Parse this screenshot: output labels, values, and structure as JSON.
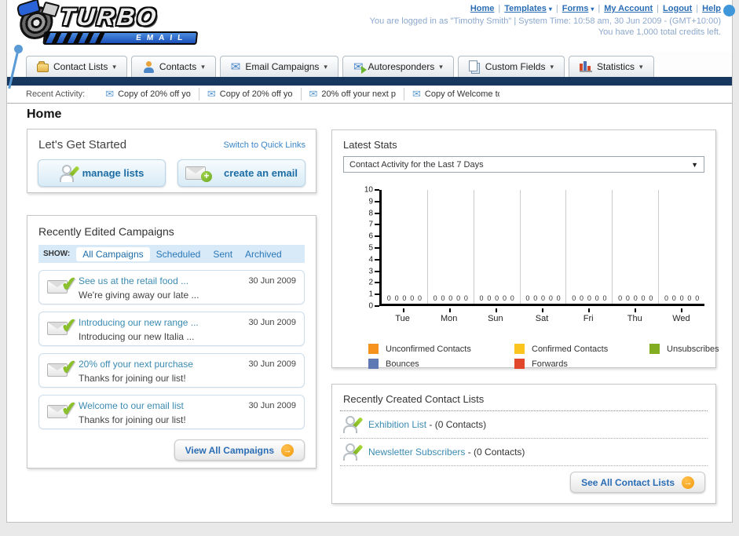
{
  "header": {
    "separator": "|",
    "nav_links": [
      {
        "label": "Home",
        "dropdown": false
      },
      {
        "label": "Templates",
        "dropdown": true
      },
      {
        "label": "Forms",
        "dropdown": true
      },
      {
        "label": "My Account",
        "dropdown": false
      },
      {
        "label": "Logout",
        "dropdown": false
      },
      {
        "label": "Help",
        "dropdown": false
      }
    ],
    "login_line": "You are logged in as \"Timothy Smith\" | System Time: 10:58 am, 30 Jun 2009 - (GMT+10:00)",
    "credits_line": "You have 1,000 total credits left.",
    "logo": {
      "title": "TURBO",
      "subtitle": "EMAIL"
    }
  },
  "tabs": [
    {
      "label": "Contact Lists",
      "icon": "contact-lists"
    },
    {
      "label": "Contacts",
      "icon": "contacts"
    },
    {
      "label": "Email Campaigns",
      "icon": "email-campaigns"
    },
    {
      "label": "Autoresponders",
      "icon": "autoresponders"
    },
    {
      "label": "Custom Fields",
      "icon": "custom-fields"
    },
    {
      "label": "Statistics",
      "icon": "statistics"
    }
  ],
  "recent_activity": {
    "label": "Recent Activity:",
    "items": [
      "Copy of 20% off yo",
      "Copy of 20% off yo",
      "20% off your next p",
      "Copy of Welcome to"
    ]
  },
  "page_title": "Home",
  "get_started": {
    "title": "Let's Get Started",
    "switch_link": "Switch to Quick Links",
    "buttons": [
      {
        "label": "manage lists",
        "icon": "person-pencil"
      },
      {
        "label": "create an email",
        "icon": "envelope-plus"
      }
    ]
  },
  "campaigns": {
    "title": "Recently Edited Campaigns",
    "show_label": "SHOW:",
    "filters": [
      "All Campaigns",
      "Scheduled",
      "Sent",
      "Archived"
    ],
    "active_filter": "All Campaigns",
    "items": [
      {
        "title": "See us at the retail food ...",
        "subtitle": "We're giving away our late ...",
        "date": "30 Jun 2009"
      },
      {
        "title": "Introducing our new range ...",
        "subtitle": "Introducing our new Italia ...",
        "date": "30 Jun 2009"
      },
      {
        "title": "20% off your next purchase",
        "subtitle": "Thanks for joining our list!",
        "date": "30 Jun 2009"
      },
      {
        "title": "Welcome to our email list",
        "subtitle": "Thanks for joining our list!",
        "date": "30 Jun 2009"
      }
    ],
    "view_all_label": "View All Campaigns"
  },
  "latest_stats": {
    "title": "Latest Stats",
    "dropdown_value": "Contact Activity for the Last 7 Days"
  },
  "chart_data": {
    "type": "bar",
    "title": "Contact Activity for the Last 7 Days",
    "categories": [
      "Tue",
      "Mon",
      "Sun",
      "Sat",
      "Fri",
      "Thu",
      "Wed"
    ],
    "series": [
      {
        "name": "Unconfirmed Contacts",
        "color": "#f6921e",
        "values": [
          0,
          0,
          0,
          0,
          0,
          0,
          0
        ]
      },
      {
        "name": "Confirmed Contacts",
        "color": "#fcc41f",
        "values": [
          0,
          0,
          0,
          0,
          0,
          0,
          0
        ]
      },
      {
        "name": "Unsubscribes",
        "color": "#83ad21",
        "values": [
          0,
          0,
          0,
          0,
          0,
          0,
          0
        ]
      },
      {
        "name": "Bounces",
        "color": "#5e79b3",
        "values": [
          0,
          0,
          0,
          0,
          0,
          0,
          0
        ]
      },
      {
        "name": "Forwards",
        "color": "#e0472b",
        "values": [
          0,
          0,
          0,
          0,
          0,
          0,
          0
        ]
      }
    ],
    "xlabel": "",
    "ylabel": "",
    "ylim": [
      0,
      10
    ],
    "yticks": [
      0,
      1,
      2,
      3,
      4,
      5,
      6,
      7,
      8,
      9,
      10
    ],
    "grid": "vertical-between-groups",
    "legend_position": "bottom"
  },
  "contact_lists": {
    "title": "Recently Created Contact Lists",
    "items": [
      {
        "name": "Exhibition List",
        "suffix": " - (0 Contacts)"
      },
      {
        "name": "Newsletter Subscribers",
        "suffix": " - (0 Contacts)"
      }
    ],
    "see_all_label": "See All Contact Lists"
  }
}
